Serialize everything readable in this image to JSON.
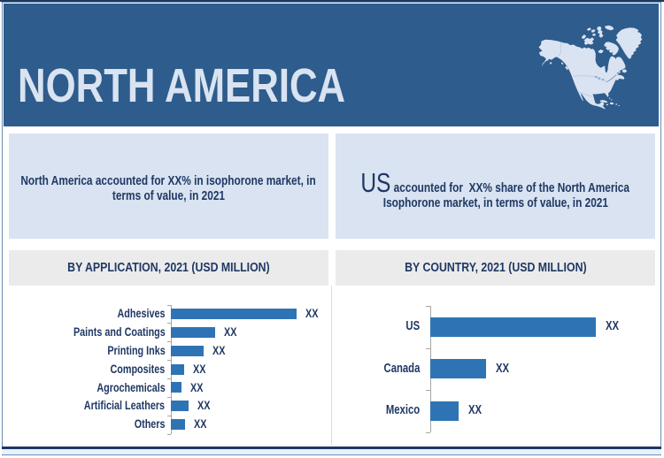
{
  "colors": {
    "header_bg": "#2e5c8c",
    "light_blue": "#d9e3f1",
    "navy_text": "#1f3864",
    "band_bg": "#ebebeb",
    "bar_blue": "#2e74b5",
    "frame_border": "#6a8cb3",
    "axis_gray": "#a6a6a6"
  },
  "header": {
    "region_title": "NORTH AMERICA"
  },
  "highlights": {
    "left": {
      "lines": [
        "North America accounted for XX% in isophorone market, in",
        "terms of value, in 2021"
      ]
    },
    "right": {
      "lead": "US",
      "lines": [
        " accounted for  XX% share of the North America",
        "Isophorone market, in terms of value, in 2021"
      ]
    }
  },
  "chart_data": [
    {
      "type": "bar",
      "orientation": "horizontal",
      "title": "BY APPLICATION, 2021 (USD MILLION)",
      "year": "2021",
      "unit": "USD MILLION",
      "categories": [
        "Adhesives",
        "Paints and Coatings",
        "Printing Inks",
        "Composites",
        "Agrochemicals",
        "Artificial Leathers",
        "Others"
      ],
      "value_labels": [
        "XX",
        "XX",
        "XX",
        "XX",
        "XX",
        "XX",
        "XX"
      ],
      "relative_values": [
        100,
        35.2,
        26.1,
        10.6,
        8.7,
        14.1,
        11.3
      ],
      "note": "numeric values masked as XX in source"
    },
    {
      "type": "bar",
      "orientation": "horizontal",
      "title": "BY COUNTRY, 2021 (USD MILLION)",
      "year": "2021",
      "unit": "USD MILLION",
      "categories": [
        "US",
        "Canada",
        "Mexico"
      ],
      "value_labels": [
        "XX",
        "XX",
        "XX"
      ],
      "relative_values": [
        100,
        33.7,
        17.1
      ],
      "note": "numeric values masked as XX in source"
    }
  ]
}
